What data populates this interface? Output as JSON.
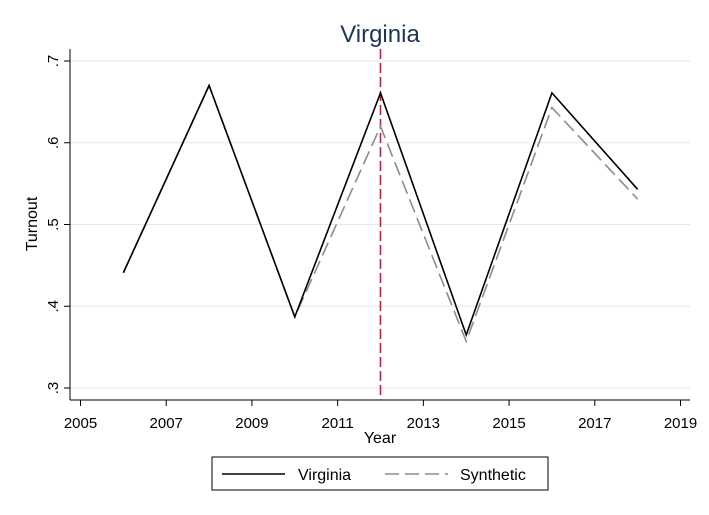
{
  "chart_data": {
    "type": "line",
    "title": "Virginia",
    "xlabel": "Year",
    "ylabel": "Turnout",
    "x": [
      2006,
      2008,
      2010,
      2012,
      2014,
      2016,
      2018
    ],
    "series": [
      {
        "name": "Virginia",
        "values": [
          0.441,
          0.67,
          0.387,
          0.661,
          0.365,
          0.661,
          0.543
        ],
        "style": "solid",
        "color": "#000000"
      },
      {
        "name": "Synthetic",
        "values": [
          0.441,
          0.67,
          0.387,
          0.62,
          0.357,
          0.643,
          0.531
        ],
        "style": "dashed",
        "color": "#8c8c8c"
      }
    ],
    "xlim": [
      2005,
      2019
    ],
    "ylim": [
      0.3,
      0.7
    ],
    "xticks": [
      2005,
      2007,
      2009,
      2011,
      2013,
      2015,
      2017,
      2019
    ],
    "xtick_labels": [
      "2005",
      "2007",
      "2009",
      "2011",
      "2013",
      "2015",
      "2017",
      "2019"
    ],
    "yticks": [
      0.3,
      0.4,
      0.5,
      0.6,
      0.7
    ],
    "ytick_labels": [
      ".3",
      ".4",
      ".5",
      ".6",
      ".7"
    ],
    "reference_line": {
      "x": 2012,
      "color": "#c41e3a",
      "style": "dashed"
    },
    "grid": true,
    "legend_position": "bottom"
  }
}
